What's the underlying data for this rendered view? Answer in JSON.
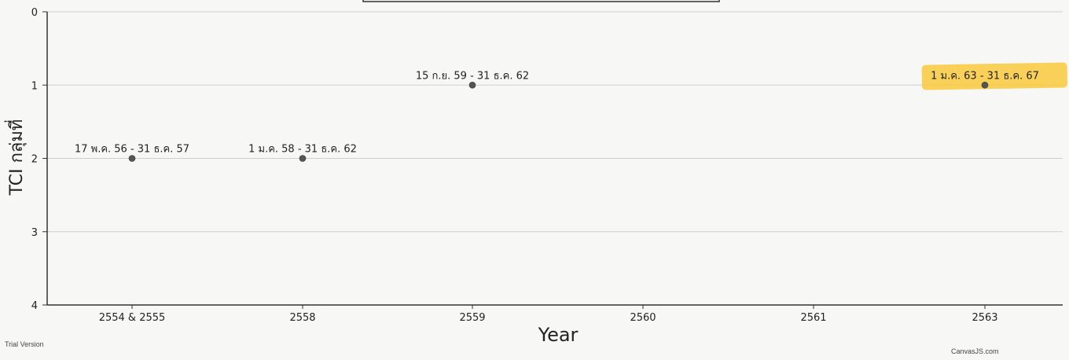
{
  "chart_data": {
    "type": "scatter",
    "title": "",
    "xlabel": "Year",
    "ylabel": "TCI กลุ่มที่",
    "categories": [
      "2554 & 2555",
      "2558",
      "2559",
      "2560",
      "2561",
      "2563"
    ],
    "ylim": [
      0,
      4
    ],
    "y_ticks": [
      "0",
      "1",
      "2",
      "3",
      "4"
    ],
    "y_reversed": true,
    "grid": true,
    "points": [
      {
        "x": "2554 & 2555",
        "y": 2,
        "label": "17 พ.ค. 56 - 31 ธ.ค. 57",
        "highlight": false
      },
      {
        "x": "2558",
        "y": 2,
        "label": "1 ม.ค. 58 - 31 ธ.ค. 62",
        "highlight": false
      },
      {
        "x": "2559",
        "y": 1,
        "label": "15 ก.ย. 59 - 31 ธ.ค. 62",
        "highlight": false
      },
      {
        "x": "2563",
        "y": 1,
        "label": "1 ม.ค. 63 - 31 ธ.ค. 67",
        "highlight": true
      }
    ],
    "highlight_color": "#f9c93c",
    "marker_color": "#555555"
  },
  "footer": {
    "trial_text": "Trial Version",
    "credit_text": "CanvasJS.com"
  }
}
